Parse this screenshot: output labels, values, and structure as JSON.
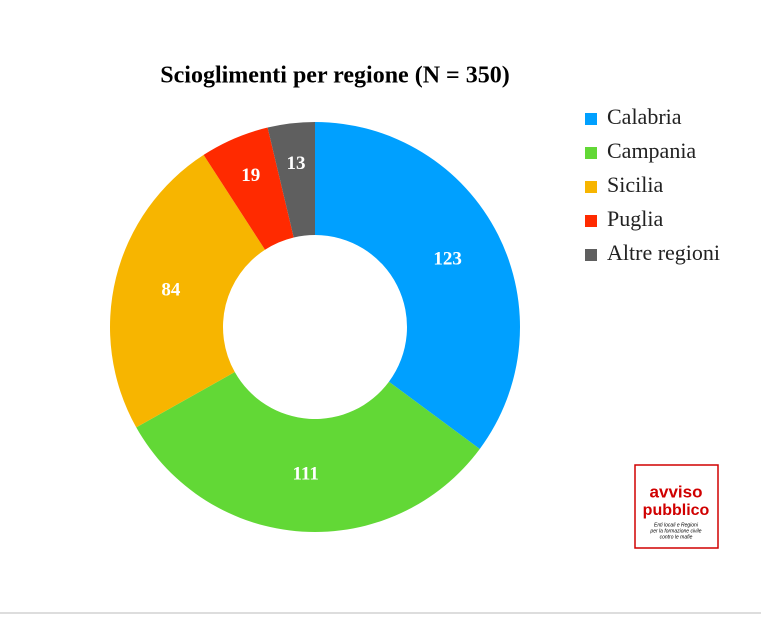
{
  "chart_data": {
    "type": "pie",
    "title": "Scioglimenti per regione (N = 350)",
    "categories": [
      "Calabria",
      "Campania",
      "Sicilia",
      "Puglia",
      "Altre regioni"
    ],
    "values": [
      123,
      111,
      84,
      19,
      13
    ],
    "colors": [
      "#00a0ff",
      "#62d836",
      "#f7b500",
      "#ff2a00",
      "#5f5f5f"
    ],
    "hole": true,
    "legend": "right"
  },
  "logo": {
    "lines": [
      "avviso",
      "pubblico"
    ],
    "tagline": [
      "Enti locali e Regioni",
      "per la formazione civile",
      "contro le mafie"
    ]
  }
}
